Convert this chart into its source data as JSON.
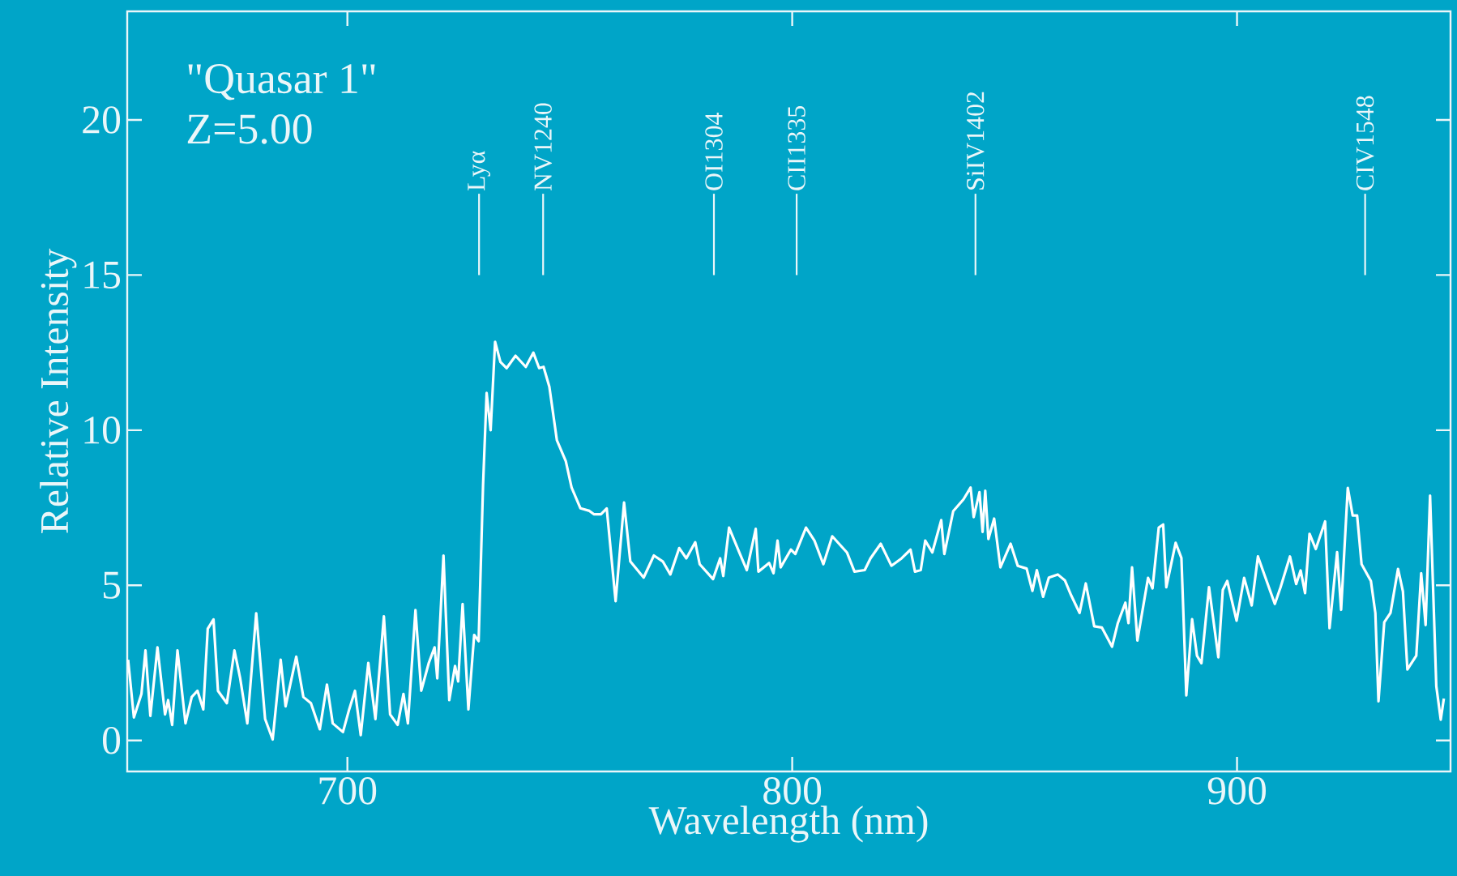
{
  "chart_data": {
    "type": "line",
    "xlabel": "Wavelength (nm)",
    "ylabel": "Relative Intensity",
    "annotations": [
      "\"Quasar 1\"",
      "Z=5.00"
    ],
    "xlim": [
      650.5,
      948
    ],
    "ylim": [
      -1,
      23.5
    ],
    "xticks": [
      700,
      800,
      900
    ],
    "yticks": [
      0,
      5,
      10,
      15,
      20
    ],
    "grid": false,
    "marker": "none",
    "line_style": "solid",
    "ref_lines": [
      {
        "axis": "x",
        "value": 729.6,
        "label": "Lyα"
      },
      {
        "axis": "x",
        "value": 744.0,
        "label": "NV1240"
      },
      {
        "axis": "x",
        "value": 782.4,
        "label": "OI1304"
      },
      {
        "axis": "x",
        "value": 801.0,
        "label": "CII1335"
      },
      {
        "axis": "x",
        "value": 841.2,
        "label": "SiIV1402"
      },
      {
        "axis": "x",
        "value": 928.8,
        "label": "CIV1548"
      }
    ],
    "series": [
      {
        "color": "#ffffff",
        "x": [
          650.7,
          652,
          653.7,
          654.6,
          655.7,
          657.3,
          659,
          659.7,
          660.6,
          661.8,
          663.6,
          665,
          666.3,
          667.6,
          668.6,
          669.9,
          670.9,
          672.9,
          674.6,
          675.9,
          677.5,
          679.5,
          681.5,
          683.2,
          685,
          686.1,
          688.5,
          690.1,
          691.8,
          693.8,
          695.4,
          696.7,
          699,
          700.4,
          701.7,
          703,
          704.7,
          706.3,
          708.2,
          709.6,
          711.3,
          712.6,
          713.6,
          715.3,
          716.6,
          718.3,
          719.6,
          720.2,
          721.6,
          722.9,
          724.2,
          724.9,
          725.9,
          727.2,
          728.5,
          729.5,
          730.5,
          731.3,
          732.2,
          733.2,
          734.4,
          735.8,
          737.8,
          740.1,
          741.8,
          743.1,
          744.1,
          745.4,
          747.1,
          749.1,
          750.4,
          752.4,
          754.4,
          755.4,
          757,
          758.3,
          760.3,
          762.2,
          763.6,
          766.6,
          768.9,
          770.9,
          772.6,
          774.6,
          776.2,
          778.2,
          779.2,
          782.2,
          783.8,
          784.5,
          785.8,
          788.1,
          789.8,
          791.8,
          792.4,
          794.8,
          795.8,
          796.7,
          797.4,
          799.7,
          800.7,
          803.1,
          805,
          807,
          809,
          812.3,
          814,
          816.3,
          817.6,
          819.9,
          822.3,
          824.6,
          826.6,
          827.6,
          828.9,
          829.9,
          831.5,
          833.5,
          834.2,
          836.2,
          838.5,
          840.1,
          840.8,
          842.1,
          842.8,
          843.4,
          844.1,
          845.4,
          846.8,
          849.1,
          850.7,
          852.7,
          854,
          855,
          856.4,
          857.7,
          859.7,
          861.3,
          862.7,
          864.6,
          866,
          867.9,
          869.6,
          871.9,
          873.2,
          874.9,
          875.6,
          876.4,
          877.6,
          880,
          881,
          882.4,
          883.4,
          884.1,
          886.2,
          887.5,
          888.6,
          889.9,
          891,
          892,
          893.7,
          895.8,
          896.8,
          897.8,
          899.9,
          901.6,
          903.3,
          904.7,
          906.4,
          908.5,
          909.8,
          911.9,
          913.3,
          914.3,
          915.3,
          916.3,
          917.7,
          919.8,
          920.8,
          922.5,
          923.4,
          924.9,
          926,
          927,
          928,
          930.1,
          931.1,
          931.8,
          933.1,
          934.5,
          936.2,
          937.3,
          938.3,
          940.3,
          941.4,
          942.4,
          943.4,
          944.8,
          945.8,
          946.5
        ],
        "values": [
          2.6,
          0.74,
          1.5,
          2.9,
          0.79,
          3.0,
          0.84,
          1.3,
          0.5,
          2.9,
          0.55,
          1.4,
          1.6,
          1.0,
          3.6,
          3.9,
          1.6,
          1.2,
          2.9,
          2.0,
          0.55,
          4.1,
          0.69,
          0.03,
          2.6,
          1.1,
          2.7,
          1.4,
          1.2,
          0.36,
          1.8,
          0.55,
          0.27,
          1.0,
          1.6,
          0.17,
          2.5,
          0.69,
          4.0,
          0.84,
          0.5,
          1.5,
          0.55,
          4.2,
          1.6,
          2.5,
          3.0,
          2.0,
          5.96,
          1.3,
          2.4,
          1.9,
          4.4,
          1.0,
          3.4,
          3.2,
          8.24,
          11.2,
          10.0,
          12.85,
          12.2,
          12.0,
          12.4,
          12.04,
          12.5,
          12.0,
          12.04,
          11.4,
          9.67,
          9.0,
          8.15,
          7.48,
          7.4,
          7.29,
          7.29,
          7.48,
          4.49,
          7.67,
          5.77,
          5.25,
          5.96,
          5.77,
          5.35,
          6.2,
          5.87,
          6.39,
          5.68,
          5.2,
          5.87,
          5.3,
          6.86,
          6.06,
          5.49,
          6.82,
          5.44,
          5.72,
          5.39,
          6.44,
          5.58,
          6.15,
          6.01,
          6.86,
          6.44,
          5.68,
          6.58,
          6.06,
          5.44,
          5.49,
          5.87,
          6.34,
          5.63,
          5.87,
          6.15,
          5.44,
          5.49,
          6.44,
          6.06,
          7.1,
          6.01,
          7.39,
          7.77,
          8.15,
          7.2,
          8.0,
          6.72,
          8.05,
          6.49,
          7.15,
          5.58,
          6.34,
          5.63,
          5.54,
          4.82,
          5.49,
          4.63,
          5.25,
          5.35,
          5.16,
          4.68,
          4.11,
          5.06,
          3.68,
          3.64,
          3.02,
          3.78,
          4.44,
          3.78,
          5.58,
          3.22,
          5.24,
          4.9,
          6.86,
          6.96,
          4.94,
          6.37,
          5.88,
          1.45,
          3.91,
          2.73,
          2.49,
          4.94,
          2.68,
          4.85,
          5.14,
          3.86,
          5.24,
          4.35,
          5.93,
          5.24,
          4.4,
          4.94,
          5.93,
          5.04,
          5.48,
          4.75,
          6.66,
          6.17,
          7.06,
          3.62,
          6.07,
          4.21,
          8.14,
          7.25,
          7.25,
          5.68,
          5.14,
          4.11,
          1.26,
          3.81,
          4.11,
          5.53,
          4.8,
          2.29,
          2.73,
          5.39,
          3.72,
          7.89,
          1.75,
          0.67,
          1.35
        ]
      }
    ]
  }
}
